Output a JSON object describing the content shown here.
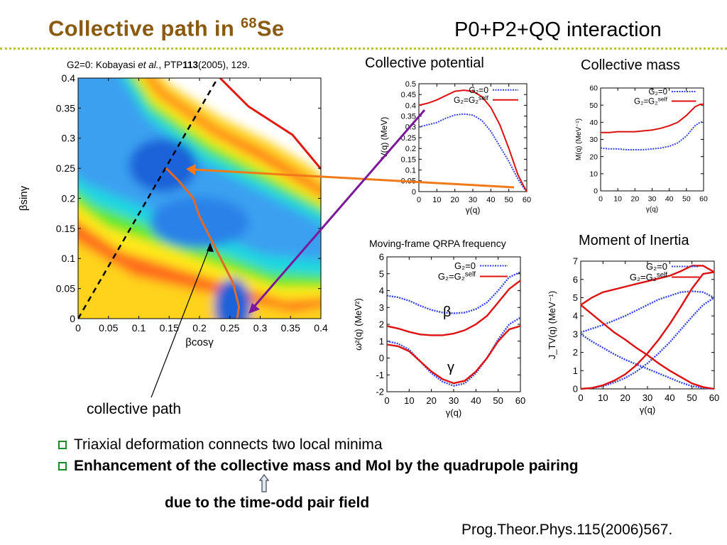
{
  "title": {
    "main": "Collective path in ",
    "sup": "68",
    "tail": "Se"
  },
  "subtitle": "P0+P2+QQ interaction",
  "ref_note": {
    "pre": "G2=0: Kobayasi ",
    "italic": "et al.",
    "mid": ", PTP",
    "bold": "113",
    "post": "(2005), 129."
  },
  "panel_titles": {
    "potential": "Collective potential",
    "mass": "Collective mass",
    "qrpa": "Moving-frame QRPA frequency",
    "inertia": "Moment of Inertia"
  },
  "collective_path_label": "collective path",
  "bullets": [
    {
      "text": "Triaxial deformation connects two local minima",
      "bold": false
    },
    {
      "text": "Enhancement of the collective mass and MoI by the quadrupole pairing",
      "bold": true
    }
  ],
  "note": "due to the time-odd pair field",
  "citation": "Prog.Theor.Phys.115(2006)567.",
  "colors": {
    "title": "#8a5a10",
    "g2_zero": "#3344dd",
    "g2_self": "#dd1111",
    "path": "#e06a2a",
    "arrow_orange": "#f07a1a",
    "arrow_purple": "#7a1a9a"
  },
  "legend": {
    "g2_zero": "G₂=0",
    "g2_self": "G₂=G₂",
    "g2_self_sup": "self"
  },
  "chart_data": [
    {
      "id": "pes",
      "type": "heatmap",
      "xlabel": "βcosγ",
      "ylabel": "βsinγ",
      "xlim": [
        0,
        0.4
      ],
      "ylim": [
        0,
        0.4
      ],
      "xticks": [
        "0",
        "0.05",
        "0.1",
        "0.15",
        "0.2",
        "0.25",
        "0.3",
        "0.35",
        "0.4"
      ],
      "yticks": [
        "0",
        "0.05",
        "0.1",
        "0.15",
        "0.2",
        "0.25",
        "0.3",
        "0.35",
        "0.4"
      ],
      "collective_path": {
        "x": [
          0.145,
          0.165,
          0.19,
          0.2,
          0.215,
          0.235,
          0.255,
          0.26,
          0.265,
          0.262
        ],
        "y": [
          0.25,
          0.23,
          0.2,
          0.17,
          0.14,
          0.1,
          0.06,
          0.04,
          0.02,
          0.0
        ]
      },
      "gamma60_line": {
        "x": [
          0,
          0.23
        ],
        "y": [
          0,
          0.4
        ]
      }
    },
    {
      "id": "potential",
      "type": "line",
      "xlabel": "γ(q)",
      "ylabel": "V(q) (MeV)",
      "xlim": [
        0,
        60
      ],
      "ylim": [
        0,
        0.5
      ],
      "xticks": [
        "0",
        "10",
        "20",
        "30",
        "40",
        "50",
        "60"
      ],
      "yticks": [
        "0",
        "0.05",
        "0.1",
        "0.15",
        "0.2",
        "0.25",
        "0.3",
        "0.35",
        "0.4",
        "0.45",
        "0.5"
      ],
      "x": [
        0,
        5,
        10,
        15,
        20,
        25,
        30,
        35,
        40,
        45,
        50,
        55,
        58,
        60
      ],
      "series": [
        {
          "name": "G₂=0",
          "values": [
            0.3,
            0.31,
            0.32,
            0.34,
            0.355,
            0.36,
            0.355,
            0.33,
            0.28,
            0.21,
            0.14,
            0.06,
            0.02,
            0.0
          ]
        },
        {
          "name": "G₂=G₂self",
          "values": [
            0.4,
            0.41,
            0.425,
            0.445,
            0.465,
            0.47,
            0.465,
            0.44,
            0.39,
            0.31,
            0.2,
            0.08,
            0.03,
            0.0
          ]
        }
      ]
    },
    {
      "id": "mass",
      "type": "line",
      "xlabel": "γ(q)",
      "ylabel": "M(q) (MeV⁻¹)",
      "xlim": [
        0,
        60
      ],
      "ylim": [
        0,
        60
      ],
      "xticks": [
        "0",
        "10",
        "20",
        "30",
        "40",
        "50",
        "60"
      ],
      "yticks": [
        "0",
        "10",
        "20",
        "30",
        "40",
        "50",
        "60"
      ],
      "x": [
        0,
        5,
        10,
        15,
        20,
        25,
        30,
        35,
        40,
        45,
        50,
        55,
        58,
        60
      ],
      "series": [
        {
          "name": "G₂=0",
          "values": [
            25,
            24.5,
            24.5,
            24,
            24,
            24,
            24.5,
            25,
            26,
            28,
            32,
            38,
            40,
            40
          ]
        },
        {
          "name": "G₂=G₂self",
          "values": [
            34,
            34,
            34.5,
            34.5,
            34.5,
            35,
            35.5,
            36.5,
            38,
            40,
            44,
            49,
            50.5,
            50.5
          ]
        }
      ]
    },
    {
      "id": "qrpa",
      "type": "line",
      "xlabel": "γ(q)",
      "ylabel": "ω²(q) (MeV²)",
      "xlim": [
        0,
        60
      ],
      "ylim": [
        -2,
        6
      ],
      "xticks": [
        "0",
        "10",
        "20",
        "30",
        "40",
        "50",
        "60"
      ],
      "yticks": [
        "-2",
        "-1",
        "0",
        "1",
        "2",
        "3",
        "4",
        "5",
        "6"
      ],
      "annotations": [
        "β",
        "γ"
      ],
      "x": [
        0,
        5,
        10,
        15,
        20,
        25,
        30,
        35,
        40,
        45,
        50,
        55,
        60
      ],
      "series": [
        {
          "name": "G₂=0 β",
          "values": [
            3.7,
            3.6,
            3.4,
            3.1,
            2.85,
            2.7,
            2.65,
            2.7,
            2.9,
            3.3,
            4.0,
            4.8,
            5.1
          ]
        },
        {
          "name": "G₂=G₂self β",
          "values": [
            1.9,
            1.75,
            1.55,
            1.4,
            1.35,
            1.35,
            1.45,
            1.65,
            2.0,
            2.5,
            3.3,
            4.1,
            4.6
          ]
        },
        {
          "name": "G₂=0 γ",
          "values": [
            1.0,
            0.85,
            0.5,
            -0.2,
            -0.9,
            -1.4,
            -1.65,
            -1.5,
            -0.9,
            0.0,
            1.1,
            2.0,
            2.4
          ]
        },
        {
          "name": "G₂=G₂self γ",
          "values": [
            0.8,
            0.7,
            0.4,
            -0.2,
            -0.8,
            -1.25,
            -1.5,
            -1.35,
            -0.8,
            0.0,
            1.0,
            1.7,
            1.9
          ]
        }
      ]
    },
    {
      "id": "inertia",
      "type": "line",
      "xlabel": "γ(q)",
      "ylabel": "J_TV(q) (MeV⁻¹)",
      "xlim": [
        0,
        60
      ],
      "ylim": [
        0,
        7
      ],
      "xticks": [
        "0",
        "10",
        "20",
        "30",
        "40",
        "50",
        "60"
      ],
      "yticks": [
        "0",
        "1",
        "2",
        "3",
        "4",
        "5",
        "6",
        "7"
      ],
      "x": [
        0,
        5,
        10,
        15,
        20,
        25,
        30,
        35,
        40,
        45,
        50,
        55,
        60
      ],
      "series": [
        {
          "name": "G₂=0 J1",
          "values": [
            3.1,
            3.3,
            3.5,
            3.75,
            4.0,
            4.3,
            4.6,
            4.9,
            5.1,
            5.3,
            5.35,
            5.3,
            5.0
          ]
        },
        {
          "name": "G₂=0 J2",
          "values": [
            3.0,
            2.6,
            2.25,
            1.9,
            1.6,
            1.35,
            1.1,
            0.85,
            0.6,
            0.35,
            0.15,
            0.05,
            0.0
          ]
        },
        {
          "name": "G₂=0 J3",
          "values": [
            0.0,
            0.05,
            0.15,
            0.35,
            0.6,
            0.95,
            1.4,
            1.95,
            2.55,
            3.25,
            3.95,
            4.6,
            5.0
          ]
        },
        {
          "name": "G₂=G₂self J1",
          "values": [
            4.6,
            5.0,
            5.3,
            5.45,
            5.6,
            5.75,
            5.9,
            6.05,
            6.2,
            6.45,
            6.75,
            6.75,
            6.4
          ]
        },
        {
          "name": "G₂=G₂self J2",
          "values": [
            4.6,
            4.1,
            3.6,
            3.1,
            2.7,
            2.25,
            1.85,
            1.4,
            1.0,
            0.65,
            0.3,
            0.1,
            0.0
          ]
        },
        {
          "name": "G₂=G₂self J3",
          "values": [
            0.0,
            0.05,
            0.2,
            0.45,
            0.8,
            1.3,
            1.95,
            2.7,
            3.55,
            4.5,
            5.5,
            6.3,
            6.4
          ]
        }
      ]
    }
  ]
}
